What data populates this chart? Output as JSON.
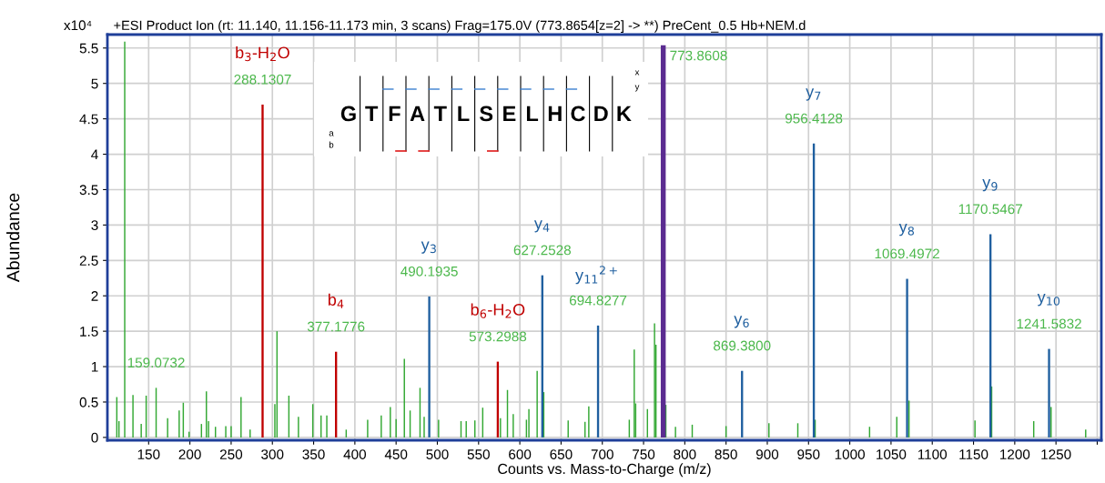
{
  "chart_data": {
    "type": "bar",
    "title": "+ESI Product Ion (rt: 11.140, 11.156-11.173 min, 3 scans) Frag=175.0V (773.8654[z=2] -> **) PreCent_0.5 Hb+NEM.d",
    "xlabel": "Counts vs. Mass-to-Charge (m/z)",
    "ylabel": "Abundance",
    "xlim": [
      100,
      1305
    ],
    "xticks": [
      150,
      200,
      250,
      300,
      350,
      400,
      450,
      500,
      550,
      600,
      650,
      700,
      750,
      800,
      850,
      900,
      950,
      1000,
      1050,
      1100,
      1150,
      1200,
      1250,
      {
        "value": 1300,
        "label": null
      }
    ],
    "ylim": [
      -0.04,
      5.69
    ],
    "yticks": [
      0,
      0.5,
      1,
      1.5,
      2,
      2.5,
      3,
      3.5,
      4,
      4.5,
      5,
      5.5
    ],
    "grid": true,
    "legend": false,
    "series": [
      {
        "color": "#33a833",
        "x": [
          111.4,
          114,
          121,
          131,
          141,
          147,
          159.0732,
          173,
          187,
          192,
          199,
          214,
          220,
          222.6,
          231,
          243.5,
          250,
          262,
          273,
          303,
          305.6,
          320,
          331.6,
          349,
          359,
          366,
          389.5,
          415.5,
          432,
          443,
          450,
          460,
          467,
          479,
          484,
          501.5,
          528.7,
          535,
          545.5,
          555,
          576.5,
          585,
          592,
          608,
          611,
          621,
          629,
          658.6,
          679,
          683.6,
          732.7,
          738.7,
          740.4,
          754.7,
          763.3,
          765,
          777,
          788.7,
          809,
          850,
          902,
          937,
          958,
          1024,
          1057,
          1071.8,
          1151.8,
          1172,
          1223,
          1244,
          1286
        ],
        "values": [
          0.57,
          0.23,
          5.59,
          0.6,
          0.19,
          0.59,
          0.7,
          0.27,
          0.38,
          0.49,
          0.08,
          0.19,
          0.65,
          0.23,
          0.15,
          0.16,
          0.16,
          0.57,
          0.11,
          0.47,
          1.5,
          0.59,
          0.29,
          0.47,
          0.31,
          0.31,
          0.11,
          0.25,
          0.31,
          0.43,
          0.26,
          1.11,
          0.38,
          0.7,
          0.29,
          0.25,
          0.23,
          0.23,
          0.24,
          0.42,
          0.27,
          0.67,
          0.33,
          0.25,
          0.4,
          0.94,
          0.64,
          0.24,
          0.22,
          0.44,
          0.25,
          1.24,
          0.48,
          0.4,
          1.61,
          1.31,
          0.46,
          0.15,
          0.18,
          0.16,
          0.2,
          0.2,
          0.25,
          0.15,
          0.29,
          0.52,
          0.24,
          0.72,
          0.23,
          0.43,
          0.11
        ]
      },
      {
        "color": "#c00000",
        "x": [
          288.1307,
          377.1776,
          573.2988
        ],
        "values": [
          4.7,
          1.21,
          1.07
        ]
      },
      {
        "color": "#1f5f9f",
        "x": [
          490.1935,
          627.2528,
          694.8277,
          869.38,
          956.4128,
          1069.4972,
          1170.5467,
          1241.5832
        ],
        "values": [
          1.99,
          2.29,
          1.58,
          0.94,
          4.15,
          2.24,
          2.87,
          1.25
        ]
      },
      {
        "color": "#5b2c91",
        "x": [
          773.8608
        ],
        "values": [
          5.54
        ]
      }
    ],
    "annotations": [
      "x10⁴",
      "GTFATLSELHCDK",
      "a",
      "b",
      "x",
      "y",
      {
        "text": "159.0732",
        "x": 159.0732,
        "y": 0.7
      },
      {
        "text": "b$_{3}$-H$_{2}$O",
        "x": 288.1307,
        "y": 4.7
      },
      {
        "text": "288.1307",
        "x": 288.1307,
        "y": 4.7
      },
      {
        "text": "b$_{4}$",
        "x": 377.1776,
        "y": 1.21
      },
      {
        "text": "377.1776",
        "x": 377.1776,
        "y": 1.21
      },
      {
        "text": "b$_{6}$-H$_{2}$O",
        "x": 573.2988,
        "y": 1.07
      },
      {
        "text": "573.2988",
        "x": 573.2988,
        "y": 1.07
      },
      {
        "text": "y$_{3}$",
        "x": 490.1935,
        "y": 1.99
      },
      {
        "text": "490.1935",
        "x": 490.1935,
        "y": 1.99
      },
      {
        "text": "y$_{4}$",
        "x": 627.2528,
        "y": 2.29
      },
      {
        "text": "627.2528",
        "x": 627.2528,
        "y": 2.29
      },
      {
        "text": "y$_{11}$$^{2+}$",
        "x": 694.8277,
        "y": 1.58
      },
      {
        "text": "694.8277",
        "x": 694.8277,
        "y": 1.58
      },
      {
        "text": "773.8608",
        "x": 773.8608,
        "y": 5.54
      },
      {
        "text": "y$_{6}$",
        "x": 869.38,
        "y": 0.94
      },
      {
        "text": "869.3800",
        "x": 869.38,
        "y": 0.94
      },
      {
        "text": "y$_{7}$",
        "x": 956.4128,
        "y": 4.15
      },
      {
        "text": "956.4128",
        "x": 956.4128,
        "y": 4.15
      },
      {
        "text": "y$_{8}$",
        "x": 1069.4972,
        "y": 2.24
      },
      {
        "text": "1069.4972",
        "x": 1069.4972,
        "y": 2.24
      },
      {
        "text": "y$_{9}$",
        "x": 1170.5467,
        "y": 2.87
      },
      {
        "text": "1170.5467",
        "x": 1170.5467,
        "y": 2.87
      },
      {
        "text": "y$_{10}$",
        "x": 1241.5832,
        "y": 1.25
      },
      {
        "text": "1241.5832",
        "x": 1241.5832,
        "y": 1.25
      }
    ]
  }
}
